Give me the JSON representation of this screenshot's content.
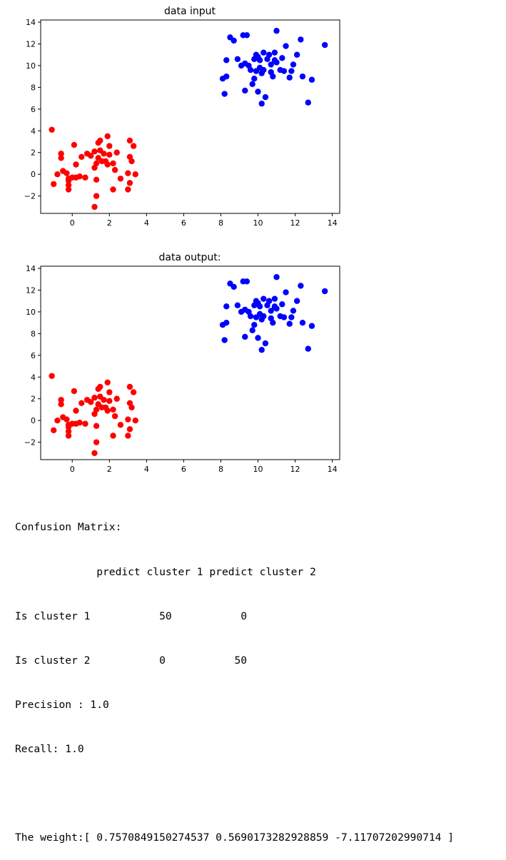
{
  "chart_data": [
    {
      "type": "scatter",
      "title": "data input",
      "xlim": [
        -1.7,
        14.4
      ],
      "ylim": [
        -3.6,
        14.2
      ],
      "xticks": [
        "0",
        "2",
        "4",
        "6",
        "8",
        "10",
        "12",
        "14"
      ],
      "yticks": [
        "−2",
        "0",
        "2",
        "4",
        "6",
        "8",
        "10",
        "12",
        "14"
      ],
      "series": [
        {
          "color": "#ff0000",
          "points": [
            [
              -1.1,
              4.1
            ],
            [
              -1.0,
              -0.9
            ],
            [
              -0.8,
              0.0
            ],
            [
              -0.6,
              1.9
            ],
            [
              -0.6,
              1.5
            ],
            [
              -0.5,
              0.3
            ],
            [
              -0.3,
              0.1
            ],
            [
              -0.2,
              -0.6
            ],
            [
              -0.2,
              -0.4
            ],
            [
              -0.2,
              -1.4
            ],
            [
              -0.2,
              -1.0
            ],
            [
              0.0,
              -0.3
            ],
            [
              0.1,
              2.7
            ],
            [
              0.2,
              0.9
            ],
            [
              0.2,
              -0.3
            ],
            [
              0.4,
              -0.2
            ],
            [
              0.5,
              1.6
            ],
            [
              0.7,
              -0.3
            ],
            [
              0.8,
              1.9
            ],
            [
              1.0,
              1.7
            ],
            [
              1.2,
              0.6
            ],
            [
              1.2,
              2.1
            ],
            [
              1.3,
              -0.5
            ],
            [
              1.3,
              -2.0
            ],
            [
              1.2,
              -3.0
            ],
            [
              1.3,
              1.0
            ],
            [
              1.4,
              1.5
            ],
            [
              1.4,
              2.9
            ],
            [
              1.5,
              3.1
            ],
            [
              1.5,
              2.2
            ],
            [
              1.6,
              1.2
            ],
            [
              1.7,
              1.9
            ],
            [
              1.8,
              1.2
            ],
            [
              1.9,
              3.5
            ],
            [
              1.9,
              0.9
            ],
            [
              2.0,
              1.8
            ],
            [
              2.0,
              2.6
            ],
            [
              2.2,
              1.0
            ],
            [
              2.2,
              -1.4
            ],
            [
              2.3,
              0.4
            ],
            [
              2.4,
              2.0
            ],
            [
              2.6,
              -0.4
            ],
            [
              3.0,
              -1.4
            ],
            [
              3.0,
              0.1
            ],
            [
              3.1,
              -0.8
            ],
            [
              3.1,
              1.6
            ],
            [
              3.1,
              3.1
            ],
            [
              3.2,
              1.2
            ],
            [
              3.3,
              2.6
            ],
            [
              3.4,
              0.0
            ]
          ]
        },
        {
          "color": "#0000ff",
          "points": [
            [
              8.1,
              8.8
            ],
            [
              8.3,
              9.0
            ],
            [
              8.2,
              7.4
            ],
            [
              8.3,
              10.5
            ],
            [
              8.5,
              12.6
            ],
            [
              8.7,
              12.3
            ],
            [
              8.9,
              10.6
            ],
            [
              9.1,
              10.0
            ],
            [
              9.2,
              12.8
            ],
            [
              9.3,
              10.2
            ],
            [
              9.3,
              7.7
            ],
            [
              9.4,
              12.8
            ],
            [
              9.5,
              10.0
            ],
            [
              9.6,
              9.6
            ],
            [
              9.7,
              8.3
            ],
            [
              9.8,
              8.8
            ],
            [
              9.8,
              10.6
            ],
            [
              9.9,
              11.0
            ],
            [
              9.9,
              9.5
            ],
            [
              10.0,
              10.8
            ],
            [
              10.0,
              7.6
            ],
            [
              10.1,
              9.8
            ],
            [
              10.1,
              10.5
            ],
            [
              10.2,
              9.3
            ],
            [
              10.2,
              6.5
            ],
            [
              10.3,
              9.6
            ],
            [
              10.3,
              11.2
            ],
            [
              10.4,
              7.1
            ],
            [
              10.5,
              10.6
            ],
            [
              10.6,
              11.0
            ],
            [
              10.7,
              10.1
            ],
            [
              10.7,
              9.4
            ],
            [
              10.8,
              9.0
            ],
            [
              10.9,
              10.5
            ],
            [
              10.9,
              11.2
            ],
            [
              11.0,
              13.2
            ],
            [
              11.0,
              10.3
            ],
            [
              11.2,
              9.6
            ],
            [
              11.3,
              10.7
            ],
            [
              11.4,
              9.5
            ],
            [
              11.5,
              11.8
            ],
            [
              11.7,
              8.9
            ],
            [
              11.8,
              9.5
            ],
            [
              11.9,
              10.1
            ],
            [
              12.1,
              11.0
            ],
            [
              12.3,
              12.4
            ],
            [
              12.4,
              9.0
            ],
            [
              12.7,
              6.6
            ],
            [
              12.9,
              8.7
            ],
            [
              13.6,
              11.9
            ]
          ]
        }
      ]
    },
    {
      "type": "scatter",
      "title": "data output:",
      "xlim": [
        -1.7,
        14.4
      ],
      "ylim": [
        -3.6,
        14.2
      ],
      "xticks": [
        "0",
        "2",
        "4",
        "6",
        "8",
        "10",
        "12",
        "14"
      ],
      "yticks": [
        "−2",
        "0",
        "2",
        "4",
        "6",
        "8",
        "10",
        "12",
        "14"
      ],
      "series": [
        {
          "color": "#ff0000",
          "points": [
            [
              -1.1,
              4.1
            ],
            [
              -1.0,
              -0.9
            ],
            [
              -0.8,
              0.0
            ],
            [
              -0.6,
              1.9
            ],
            [
              -0.6,
              1.5
            ],
            [
              -0.5,
              0.3
            ],
            [
              -0.3,
              0.1
            ],
            [
              -0.2,
              -0.6
            ],
            [
              -0.2,
              -0.4
            ],
            [
              -0.2,
              -1.4
            ],
            [
              -0.2,
              -1.0
            ],
            [
              0.0,
              -0.3
            ],
            [
              0.1,
              2.7
            ],
            [
              0.2,
              0.9
            ],
            [
              0.2,
              -0.3
            ],
            [
              0.4,
              -0.2
            ],
            [
              0.5,
              1.6
            ],
            [
              0.7,
              -0.3
            ],
            [
              0.8,
              1.9
            ],
            [
              1.0,
              1.7
            ],
            [
              1.2,
              0.6
            ],
            [
              1.2,
              2.1
            ],
            [
              1.3,
              -0.5
            ],
            [
              1.3,
              -2.0
            ],
            [
              1.2,
              -3.0
            ],
            [
              1.3,
              1.0
            ],
            [
              1.4,
              1.5
            ],
            [
              1.4,
              2.9
            ],
            [
              1.5,
              3.1
            ],
            [
              1.5,
              2.2
            ],
            [
              1.6,
              1.2
            ],
            [
              1.7,
              1.9
            ],
            [
              1.8,
              1.2
            ],
            [
              1.9,
              3.5
            ],
            [
              1.9,
              0.9
            ],
            [
              2.0,
              1.8
            ],
            [
              2.0,
              2.6
            ],
            [
              2.2,
              1.0
            ],
            [
              2.2,
              -1.4
            ],
            [
              2.3,
              0.4
            ],
            [
              2.4,
              2.0
            ],
            [
              2.6,
              -0.4
            ],
            [
              3.0,
              -1.4
            ],
            [
              3.0,
              0.1
            ],
            [
              3.1,
              -0.8
            ],
            [
              3.1,
              1.6
            ],
            [
              3.1,
              3.1
            ],
            [
              3.2,
              1.2
            ],
            [
              3.3,
              2.6
            ],
            [
              3.4,
              0.0
            ]
          ]
        },
        {
          "color": "#0000ff",
          "points": [
            [
              8.1,
              8.8
            ],
            [
              8.3,
              9.0
            ],
            [
              8.2,
              7.4
            ],
            [
              8.3,
              10.5
            ],
            [
              8.5,
              12.6
            ],
            [
              8.7,
              12.3
            ],
            [
              8.9,
              10.6
            ],
            [
              9.1,
              10.0
            ],
            [
              9.2,
              12.8
            ],
            [
              9.3,
              10.2
            ],
            [
              9.3,
              7.7
            ],
            [
              9.4,
              12.8
            ],
            [
              9.5,
              10.0
            ],
            [
              9.6,
              9.6
            ],
            [
              9.7,
              8.3
            ],
            [
              9.8,
              8.8
            ],
            [
              9.8,
              10.6
            ],
            [
              9.9,
              11.0
            ],
            [
              9.9,
              9.5
            ],
            [
              10.0,
              10.8
            ],
            [
              10.0,
              7.6
            ],
            [
              10.1,
              9.8
            ],
            [
              10.1,
              10.5
            ],
            [
              10.2,
              9.3
            ],
            [
              10.2,
              6.5
            ],
            [
              10.3,
              9.6
            ],
            [
              10.3,
              11.2
            ],
            [
              10.4,
              7.1
            ],
            [
              10.5,
              10.6
            ],
            [
              10.6,
              11.0
            ],
            [
              10.7,
              10.1
            ],
            [
              10.7,
              9.4
            ],
            [
              10.8,
              9.0
            ],
            [
              10.9,
              10.5
            ],
            [
              10.9,
              11.2
            ],
            [
              11.0,
              13.2
            ],
            [
              11.0,
              10.3
            ],
            [
              11.2,
              9.6
            ],
            [
              11.3,
              10.7
            ],
            [
              11.4,
              9.5
            ],
            [
              11.5,
              11.8
            ],
            [
              11.7,
              8.9
            ],
            [
              11.8,
              9.5
            ],
            [
              11.9,
              10.1
            ],
            [
              12.1,
              11.0
            ],
            [
              12.3,
              12.4
            ],
            [
              12.4,
              9.0
            ],
            [
              12.7,
              6.6
            ],
            [
              12.9,
              8.7
            ],
            [
              13.6,
              11.9
            ]
          ]
        }
      ]
    }
  ],
  "output": {
    "lines": [
      "Confusion Matrix:",
      "             predict cluster 1 predict cluster 2",
      "Is cluster 1           50           0",
      "Is cluster 2           0           50",
      "Precision : 1.0",
      "Recall: 1.0",
      "",
      "The weight:[ 0.7570849150274537 0.5690173282928859 -7.11707202990714 ]"
    ]
  }
}
